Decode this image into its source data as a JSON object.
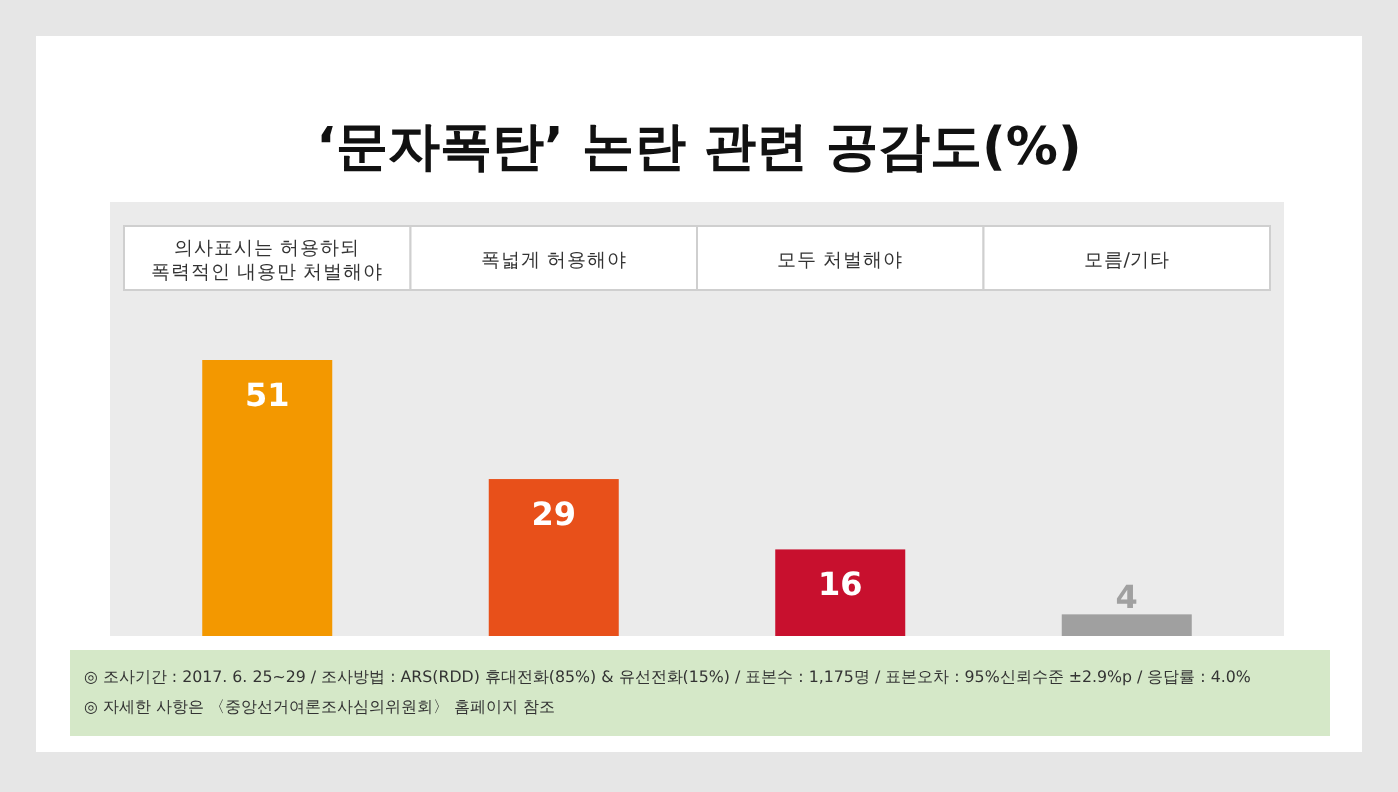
{
  "chart_data": {
    "type": "bar",
    "title": "‘문자폭탄’ 논란 관련 공감도(%)",
    "categories": [
      "의사표시는 허용하되\n폭력적인 내용만 처벌해야",
      "폭넓게 허용해야",
      "모두 처벌해야",
      "모름/기타"
    ],
    "values": [
      51,
      29,
      16,
      4
    ],
    "colors": [
      "#f39800",
      "#e8501a",
      "#c8102e",
      "#a0a0a0"
    ],
    "data_labels": true,
    "annotations": [
      "◎ 조사기간 : 2017. 6. 25~29 / 조사방법 : ARS(RDD) 휴대전화(85%) & 유선전화(15%) / 표본수 : 1,175명 / 표본오차 : 95%신뢰수준 ±2.9%p / 응답률 : 4.0%",
      "◎ 자세한 사항은 〈중앙선거여론조사심의위원회〉 홈페이지 참조"
    ]
  }
}
